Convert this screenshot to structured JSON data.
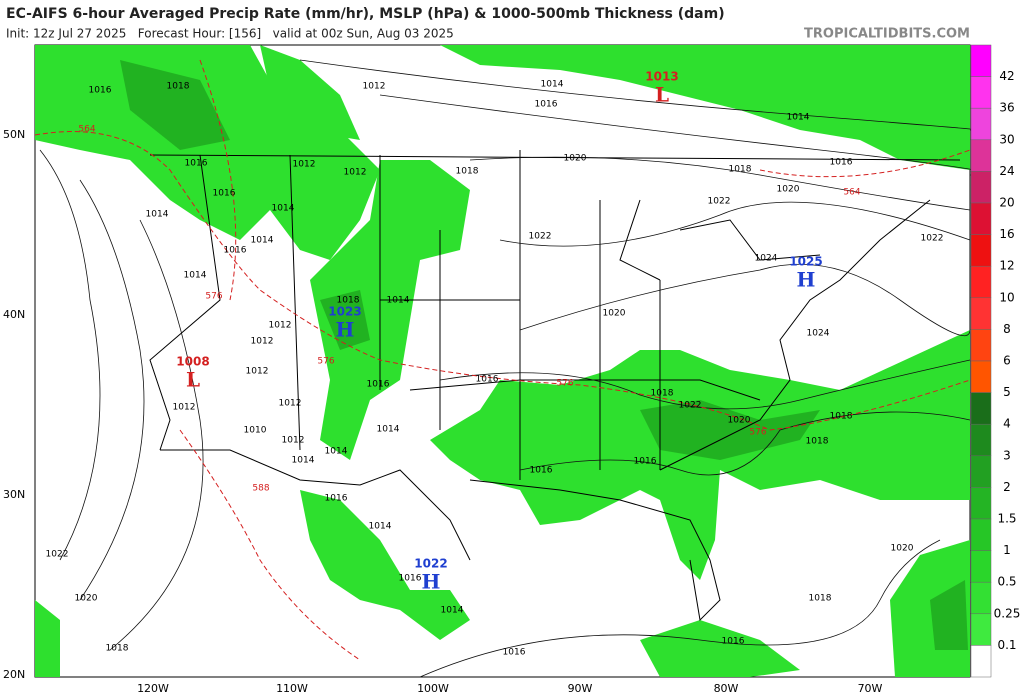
{
  "header": {
    "title": "EC-AIFS 6-hour Averaged Precip Rate (mm/hr), MSLP (hPa) & 1000-500mb Thickness (dam)",
    "subtitle": "Init: 12z Jul 27 2025   Forecast Hour: [156]   valid at 00z Sun, Aug 03 2025",
    "credit": "TROPICALTIDBITS.COM"
  },
  "axes": {
    "lat_labels": [
      "50N",
      "40N",
      "30N",
      "20N"
    ],
    "lon_labels": [
      "120W",
      "110W",
      "100W",
      "90W",
      "80W",
      "70W"
    ]
  },
  "colorbar": {
    "labels": [
      "42",
      "36",
      "30",
      "24",
      "20",
      "16",
      "12",
      "10",
      "8",
      "6",
      "5",
      "4",
      "3",
      "2",
      "1.5",
      "1",
      "0.5",
      "0.25",
      "0.1"
    ],
    "colors": [
      "#ff00ff",
      "#ff33ee",
      "#ee44dd",
      "#dd3399",
      "#cc2266",
      "#dd1133",
      "#ee1111",
      "#ff2222",
      "#ff3333",
      "#ff4411",
      "#ff5500",
      "#1a6e1a",
      "#1e8a1e",
      "#22a022",
      "#24b424",
      "#26c626",
      "#2ad62a",
      "#33e033",
      "#3fea3f",
      "#ffffff"
    ]
  },
  "pressure_centers": [
    {
      "value": "1013",
      "symbol": "L"
    },
    {
      "value": "1008",
      "symbol": "L"
    },
    {
      "value": "1023",
      "symbol": "H"
    },
    {
      "value": "1025",
      "symbol": "H"
    },
    {
      "value": "1022",
      "symbol": "H"
    }
  ],
  "isobar_labels": [
    "1014",
    "1016",
    "1014",
    "1016",
    "1018",
    "1020",
    "1022",
    "1020",
    "1022",
    "1018",
    "1012",
    "1012",
    "1012",
    "1014",
    "1014",
    "1016",
    "1014",
    "1016",
    "1014",
    "1016",
    "1018",
    "1016",
    "1012",
    "1012",
    "1012",
    "1012",
    "1012",
    "1010",
    "1012",
    "1014",
    "1014",
    "1014",
    "1016",
    "1014",
    "1018",
    "1016",
    "1020",
    "1024",
    "1024",
    "1022",
    "1018",
    "1022",
    "1020",
    "1018",
    "1018",
    "1016",
    "1016",
    "1016",
    "1014",
    "1016",
    "1014",
    "1016",
    "1018",
    "1020",
    "1022",
    "1020",
    "1018",
    "1016"
  ],
  "thickness_labels": [
    "564",
    "576",
    "576",
    "576",
    "576",
    "588",
    "564"
  ]
}
